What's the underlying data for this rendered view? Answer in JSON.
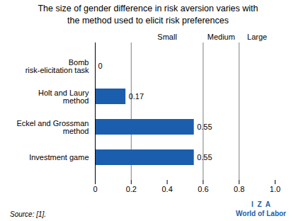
{
  "chart_data": {
    "type": "bar",
    "orientation": "horizontal",
    "title": "The size of gender difference in risk aversion varies with\nthe method used to elicit risk preferences",
    "categories": [
      "Investment game",
      "Eckel and Grossman\nmethod",
      "Holt and Laury\nmethod",
      "Bomb\nrisk-elicitation task"
    ],
    "values": [
      0.55,
      0.55,
      0.17,
      0
    ],
    "color": "#1B5EAD",
    "data_labels": true,
    "xlim": [
      0,
      1.0
    ],
    "xticks": [
      0,
      0.2,
      0.4,
      0.6,
      0.8,
      {
        "value": 1.0,
        "label": "1.0"
      }
    ],
    "grid": false,
    "reference_lines": [
      0.2,
      0.6,
      0.8
    ],
    "annotations": [
      {
        "text": "Small",
        "x": 0.4
      },
      {
        "text": "Medium",
        "x": 0.7
      },
      {
        "text": "Large",
        "x": 0.9
      }
    ],
    "source": "Source: [1].",
    "brand": {
      "lines": [
        "I  Z  A",
        "World of Labor"
      ],
      "color": "#1B5EAD"
    }
  }
}
